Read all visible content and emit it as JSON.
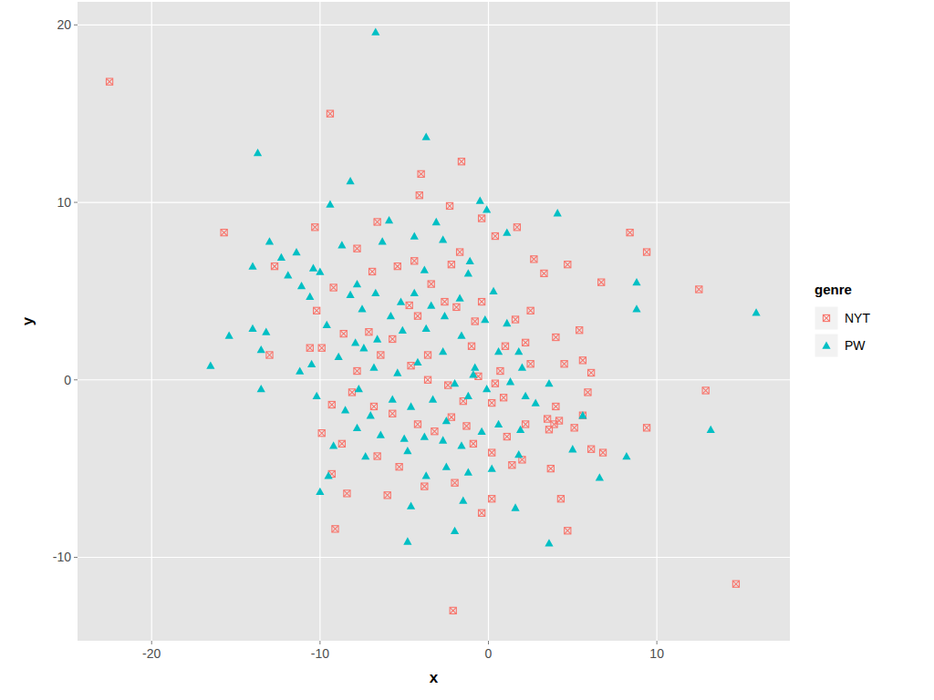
{
  "chart_data": {
    "type": "scatter",
    "x_label": "x",
    "y_label": "y",
    "legend_title": "genre",
    "legend": "right",
    "grid": true,
    "xlim": [
      -24.4,
      17.9
    ],
    "ylim": [
      -14.7,
      21.3
    ],
    "xticks": [
      -20,
      -10,
      0,
      10
    ],
    "yticks": [
      -10,
      0,
      10,
      20
    ],
    "series": [
      {
        "name": "NYT",
        "color": "#F8766D",
        "marker": "square-x",
        "x": [
          -22.5,
          -9.4,
          -15.7,
          -1.6,
          -4.0,
          -4.1,
          -2.3,
          -0.4,
          -10.3,
          -6.6,
          0.4,
          1.7,
          8.4,
          9.4,
          12.5,
          6.7,
          4.7,
          3.3,
          2.7,
          -12.7,
          -13.0,
          12.9,
          14.7,
          -2.1,
          -9.1,
          4.7,
          -9.3,
          -9.9,
          -8.7,
          -8.4,
          -6.6,
          -6.0,
          -5.3,
          -3.8,
          -2.0,
          -0.4,
          0.2,
          4.3,
          6.1,
          6.8,
          9.4,
          5.1,
          3.5,
          3.6,
          4.2,
          2.2,
          2.0,
          1.4,
          3.7,
          5.6,
          5.9,
          5.6,
          6.1,
          4.5,
          4.0,
          5.4,
          2.5,
          1.6,
          2.2,
          1.0,
          0.7,
          0.4,
          0.9,
          0.2,
          -0.6,
          -1.0,
          -0.8,
          -0.4,
          -1.9,
          -2.6,
          -3.4,
          -2.2,
          -1.7,
          -4.4,
          -5.4,
          -6.9,
          -7.8,
          -9.2,
          -10.2,
          -8.6,
          -7.1,
          -6.4,
          -5.7,
          -4.7,
          -4.2,
          -3.6,
          -4.6,
          -3.6,
          -2.4,
          -1.5,
          -2.2,
          -1.3,
          -3.2,
          -4.2,
          -5.7,
          -6.8,
          -8.1,
          -9.3,
          -10.6,
          -9.9,
          -7.8,
          -0.9,
          0.2,
          1.1,
          2.5,
          3.9,
          4.0
        ],
        "values": [
          16.8,
          15.0,
          8.3,
          12.3,
          11.6,
          10.4,
          9.8,
          9.1,
          8.6,
          8.9,
          8.1,
          8.6,
          8.3,
          7.2,
          5.1,
          5.5,
          6.5,
          6.0,
          6.8,
          6.4,
          1.4,
          -0.6,
          -11.5,
          -13.0,
          -8.4,
          -8.5,
          -5.3,
          -3.0,
          -3.6,
          -6.4,
          -4.3,
          -6.5,
          -4.9,
          -6.0,
          -5.8,
          -7.5,
          -6.7,
          -6.7,
          -3.9,
          -4.1,
          -2.7,
          -2.7,
          -2.2,
          -2.8,
          -2.3,
          -2.5,
          -4.5,
          -4.8,
          -5.0,
          -2.0,
          -0.7,
          1.1,
          0.4,
          0.9,
          2.4,
          2.8,
          3.9,
          3.4,
          2.1,
          1.9,
          0.5,
          -0.2,
          -1.0,
          -1.3,
          0.2,
          1.9,
          3.3,
          4.4,
          4.1,
          4.4,
          5.4,
          6.5,
          7.2,
          6.7,
          6.4,
          6.1,
          7.4,
          5.2,
          3.9,
          2.6,
          2.7,
          1.4,
          2.3,
          4.2,
          3.6,
          1.4,
          0.8,
          0.0,
          -0.3,
          -1.2,
          -2.1,
          -2.6,
          -2.9,
          -2.5,
          -1.9,
          -1.5,
          -0.7,
          -1.4,
          1.8,
          1.8,
          0.5,
          -3.6,
          -4.1,
          -3.2,
          0.9,
          -2.5,
          -1.5
        ]
      },
      {
        "name": "PW",
        "color": "#00BFC4",
        "marker": "triangle",
        "x": [
          -6.7,
          -13.7,
          -3.7,
          -8.2,
          -0.5,
          -0.1,
          -9.4,
          4.1,
          -5.9,
          -3.1,
          1.1,
          -13.0,
          -11.4,
          -12.3,
          -14.0,
          -10.4,
          -10.0,
          -11.1,
          -8.7,
          -6.3,
          -4.4,
          -2.7,
          -1.1,
          8.8,
          8.8,
          15.9,
          -13.2,
          -15.4,
          -14.0,
          -13.5,
          -16.5,
          -13.5,
          -11.2,
          -10.5,
          -9.6,
          -10.6,
          -8.2,
          -7.5,
          -7.8,
          -6.7,
          -5.2,
          -5.8,
          -6.6,
          -7.4,
          -5.1,
          -3.7,
          -2.6,
          -1.7,
          -1.2,
          0.3,
          -0.2,
          1.1,
          -1.6,
          -2.7,
          -4.2,
          -5.4,
          -6.8,
          -7.7,
          -10.2,
          -8.5,
          -7.0,
          -5.7,
          -4.6,
          -3.3,
          -2.0,
          -0.8,
          0.6,
          1.8,
          2.0,
          1.3,
          -0.1,
          -1.2,
          -2.5,
          -3.8,
          -5.0,
          -6.4,
          -7.8,
          -9.2,
          -7.3,
          -4.8,
          -2.7,
          -1.6,
          -0.4,
          0.6,
          1.9,
          1.8,
          0.2,
          -1.2,
          -2.5,
          -3.7,
          -4.6,
          -9.5,
          -10.0,
          -4.8,
          -2.0,
          -1.5,
          1.6,
          3.6,
          5.0,
          6.6,
          8.2,
          13.2,
          5.6,
          2.2,
          3.6,
          2.8,
          -0.9,
          -3.4,
          -4.4,
          -3.8,
          -7.9,
          -8.9,
          -11.9
        ],
        "values": [
          19.6,
          12.8,
          13.7,
          11.2,
          10.1,
          9.6,
          9.9,
          9.4,
          9.0,
          8.9,
          8.3,
          7.8,
          7.2,
          6.9,
          6.4,
          6.3,
          6.1,
          5.3,
          7.6,
          7.8,
          8.1,
          7.9,
          6.7,
          5.5,
          4.0,
          3.8,
          2.7,
          2.5,
          2.9,
          1.7,
          0.8,
          -0.5,
          0.5,
          0.9,
          3.1,
          4.7,
          4.8,
          4.0,
          5.4,
          4.9,
          4.4,
          3.6,
          2.3,
          1.8,
          2.8,
          2.9,
          3.6,
          4.6,
          6.0,
          5.0,
          3.4,
          3.2,
          2.5,
          1.6,
          1.0,
          0.4,
          0.7,
          -0.5,
          -0.9,
          -1.7,
          -2.0,
          -1.1,
          -1.5,
          -1.1,
          -0.2,
          0.7,
          1.6,
          1.6,
          0.7,
          -0.1,
          -0.5,
          -0.9,
          -2.3,
          -3.2,
          -3.3,
          -3.1,
          -2.7,
          -3.7,
          -4.3,
          -4.0,
          -3.4,
          -3.7,
          -2.9,
          -2.5,
          -2.8,
          -4.2,
          -5.0,
          -5.2,
          -4.9,
          -5.4,
          -7.1,
          -5.4,
          -6.3,
          -9.1,
          -8.5,
          -6.8,
          -7.2,
          -9.2,
          -3.9,
          -5.5,
          -4.3,
          -2.8,
          -2.0,
          -0.9,
          -0.2,
          -1.3,
          0.3,
          4.2,
          4.9,
          6.2,
          2.1,
          1.3,
          5.9
        ]
      }
    ]
  }
}
